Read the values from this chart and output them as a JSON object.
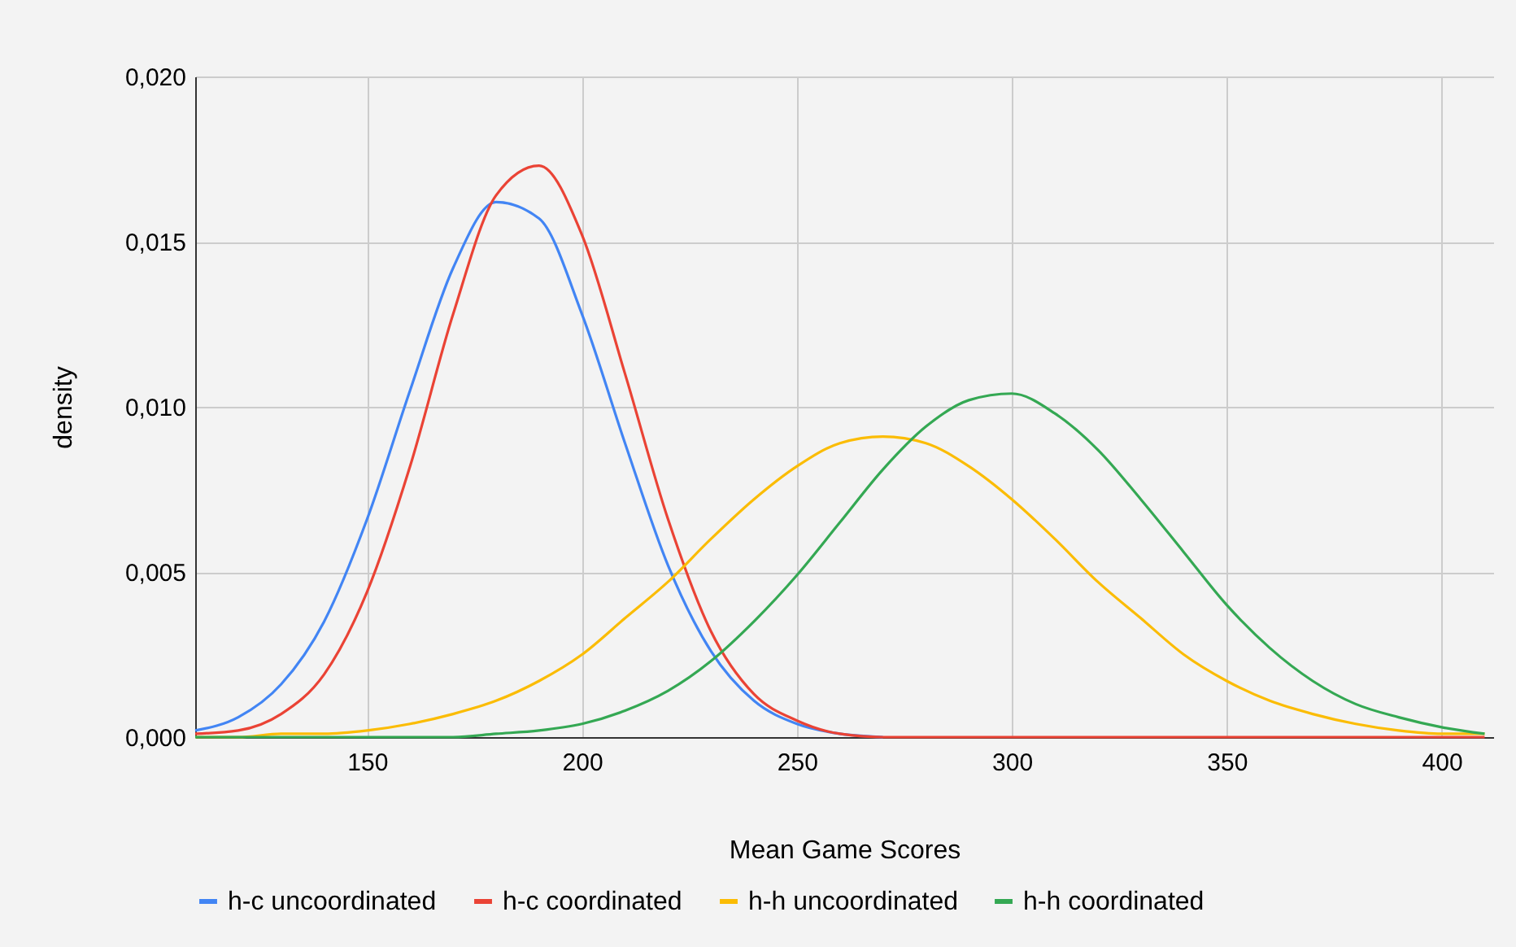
{
  "chart_data": {
    "type": "line",
    "xlabel": "Mean Game Scores",
    "ylabel": "density",
    "x": [
      110,
      120,
      130,
      140,
      150,
      160,
      170,
      180,
      190,
      200,
      210,
      220,
      230,
      240,
      250,
      260,
      270,
      280,
      290,
      300,
      310,
      320,
      330,
      340,
      350,
      360,
      370,
      380,
      390,
      400,
      410
    ],
    "series": [
      {
        "name": "h-c uncoordinated",
        "color": "#4285f4",
        "values": [
          0.0002,
          0.0006,
          0.0016,
          0.0035,
          0.0066,
          0.0105,
          0.0142,
          0.0162,
          0.0157,
          0.0128,
          0.0089,
          0.0052,
          0.0026,
          0.0011,
          0.0004,
          0.0001,
          0,
          null,
          null,
          null,
          null,
          null,
          null,
          null,
          null,
          null,
          null,
          null,
          null,
          null,
          null
        ]
      },
      {
        "name": "h-c coordinated",
        "color": "#ea4335",
        "values": [
          0.0001,
          0.0002,
          0.0007,
          0.0019,
          0.0044,
          0.0082,
          0.0128,
          0.0164,
          0.0173,
          0.0152,
          0.011,
          0.0066,
          0.0032,
          0.0013,
          0.0005,
          0.0001,
          0,
          0,
          0,
          0,
          0,
          0,
          0,
          0,
          0,
          0,
          0,
          0,
          0,
          0,
          0
        ]
      },
      {
        "name": "h-h uncoordinated",
        "color": "#fbbc04",
        "values": [
          0,
          0,
          0.0001,
          0.0001,
          0.0002,
          0.0004,
          0.0007,
          0.0011,
          0.0017,
          0.0025,
          0.0036,
          0.0047,
          0.006,
          0.0072,
          0.0082,
          0.0089,
          0.0091,
          0.0089,
          0.0082,
          0.0072,
          0.006,
          0.0047,
          0.0036,
          0.0025,
          0.0017,
          0.0011,
          0.0007,
          0.0004,
          0.0002,
          0.0001,
          0.0001
        ]
      },
      {
        "name": "h-h coordinated",
        "color": "#34a853",
        "values": [
          0,
          0,
          0,
          0,
          0,
          0,
          0,
          0.0001,
          0.0002,
          0.0004,
          0.0008,
          0.0014,
          0.0023,
          0.0035,
          0.0049,
          0.0065,
          0.0081,
          0.0094,
          0.0102,
          0.0104,
          0.0098,
          0.0087,
          0.0072,
          0.0056,
          0.004,
          0.0027,
          0.0017,
          0.001,
          0.0006,
          0.0003,
          0.0001
        ]
      }
    ],
    "xlim": [
      110,
      412
    ],
    "xticks": [
      150,
      200,
      250,
      300,
      350,
      400
    ],
    "ylim": [
      0,
      0.02
    ],
    "yticks": [
      {
        "value": 0,
        "label": "0,000"
      },
      {
        "value": 0.005,
        "label": "0,005"
      },
      {
        "value": 0.01,
        "label": "0,010"
      },
      {
        "value": 0.015,
        "label": "0,015"
      },
      {
        "value": 0.02,
        "label": "0,020"
      }
    ],
    "grid": true,
    "legend": "bottom",
    "marker": "none",
    "line_style": "solid"
  }
}
